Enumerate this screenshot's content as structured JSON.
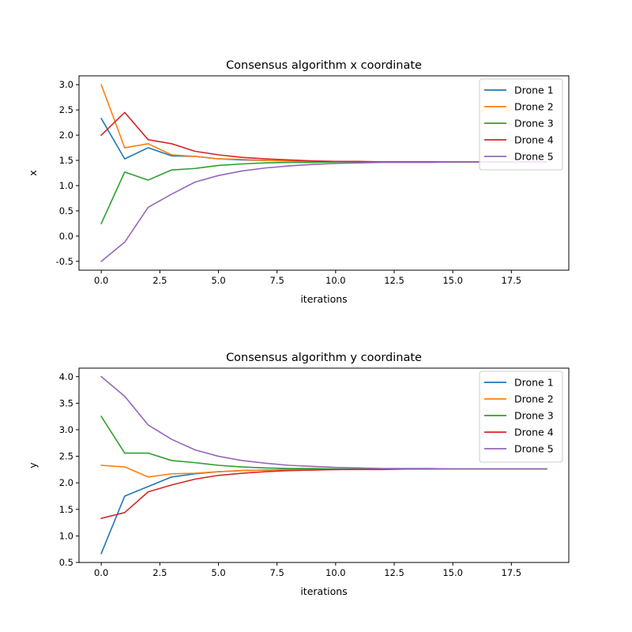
{
  "chart_data": [
    {
      "type": "line",
      "title": "Consensus algorithm x coordinate",
      "xlabel": "iterations",
      "ylabel": "x",
      "xlim": [
        -0.95,
        19.95
      ],
      "ylim": [
        -0.675,
        3.175
      ],
      "xticks": [
        "0.0",
        "2.5",
        "5.0",
        "7.5",
        "10.0",
        "12.5",
        "15.0",
        "17.5"
      ],
      "yticks": [
        "-0.5",
        "0.0",
        "0.5",
        "1.0",
        "1.5",
        "2.0",
        "2.5",
        "3.0"
      ],
      "grid": false,
      "legend_position": "top-right",
      "x": [
        0,
        1,
        2,
        3,
        4,
        5,
        6,
        7,
        8,
        9,
        10,
        11,
        12,
        13,
        14,
        15,
        16,
        17,
        18,
        19
      ],
      "series": [
        {
          "name": "Drone 1",
          "color": "#1f77b4",
          "values": [
            2.33,
            1.53,
            1.75,
            1.59,
            1.58,
            1.53,
            1.51,
            1.5,
            1.49,
            1.48,
            1.48,
            1.47,
            1.47,
            1.47,
            1.47,
            1.47,
            1.47,
            1.47,
            1.47,
            1.47
          ]
        },
        {
          "name": "Drone 2",
          "color": "#ff7f0e",
          "values": [
            3.0,
            1.75,
            1.83,
            1.61,
            1.58,
            1.53,
            1.52,
            1.5,
            1.49,
            1.48,
            1.48,
            1.47,
            1.47,
            1.47,
            1.47,
            1.47,
            1.47,
            1.47,
            1.47,
            1.47
          ]
        },
        {
          "name": "Drone 3",
          "color": "#2ca02c",
          "values": [
            0.25,
            1.27,
            1.11,
            1.31,
            1.34,
            1.4,
            1.43,
            1.45,
            1.46,
            1.46,
            1.47,
            1.47,
            1.47,
            1.47,
            1.47,
            1.47,
            1.47,
            1.47,
            1.47,
            1.47
          ]
        },
        {
          "name": "Drone 4",
          "color": "#d62728",
          "values": [
            2.0,
            2.45,
            1.91,
            1.83,
            1.68,
            1.61,
            1.56,
            1.53,
            1.51,
            1.49,
            1.48,
            1.48,
            1.47,
            1.47,
            1.47,
            1.47,
            1.47,
            1.47,
            1.47,
            1.47
          ]
        },
        {
          "name": "Drone 5",
          "color": "#9467bd",
          "values": [
            -0.5,
            -0.12,
            0.57,
            0.83,
            1.07,
            1.2,
            1.29,
            1.35,
            1.39,
            1.42,
            1.44,
            1.45,
            1.46,
            1.46,
            1.46,
            1.47,
            1.47,
            1.47,
            1.47,
            1.47
          ]
        }
      ]
    },
    {
      "type": "line",
      "title": "Consensus algorithm y coordinate",
      "xlabel": "iterations",
      "ylabel": "y",
      "xlim": [
        -0.95,
        19.95
      ],
      "ylim": [
        0.5,
        4.16
      ],
      "xticks": [
        "0.0",
        "2.5",
        "5.0",
        "7.5",
        "10.0",
        "12.5",
        "15.0",
        "17.5"
      ],
      "yticks": [
        "0.5",
        "1.0",
        "1.5",
        "2.0",
        "2.5",
        "3.0",
        "3.5",
        "4.0"
      ],
      "grid": false,
      "legend_position": "top-right",
      "x": [
        0,
        1,
        2,
        3,
        4,
        5,
        6,
        7,
        8,
        9,
        10,
        11,
        12,
        13,
        14,
        15,
        16,
        17,
        18,
        19
      ],
      "series": [
        {
          "name": "Drone 1",
          "color": "#1f77b4",
          "values": [
            0.67,
            1.75,
            1.93,
            2.11,
            2.17,
            2.21,
            2.23,
            2.24,
            2.25,
            2.25,
            2.25,
            2.26,
            2.26,
            2.26,
            2.26,
            2.26,
            2.26,
            2.26,
            2.26,
            2.26
          ]
        },
        {
          "name": "Drone 2",
          "color": "#ff7f0e",
          "values": [
            2.33,
            2.3,
            2.11,
            2.17,
            2.18,
            2.21,
            2.23,
            2.24,
            2.25,
            2.25,
            2.25,
            2.26,
            2.26,
            2.26,
            2.26,
            2.26,
            2.26,
            2.26,
            2.26,
            2.26
          ]
        },
        {
          "name": "Drone 3",
          "color": "#2ca02c",
          "values": [
            3.25,
            2.56,
            2.56,
            2.42,
            2.38,
            2.33,
            2.3,
            2.28,
            2.27,
            2.27,
            2.26,
            2.26,
            2.26,
            2.26,
            2.26,
            2.26,
            2.26,
            2.26,
            2.26,
            2.26
          ]
        },
        {
          "name": "Drone 4",
          "color": "#d62728",
          "values": [
            1.33,
            1.44,
            1.83,
            1.96,
            2.07,
            2.14,
            2.18,
            2.21,
            2.23,
            2.24,
            2.25,
            2.25,
            2.25,
            2.26,
            2.26,
            2.26,
            2.26,
            2.26,
            2.26,
            2.26
          ]
        },
        {
          "name": "Drone 5",
          "color": "#9467bd",
          "values": [
            4.0,
            3.63,
            3.09,
            2.82,
            2.62,
            2.5,
            2.42,
            2.37,
            2.33,
            2.31,
            2.29,
            2.28,
            2.27,
            2.27,
            2.27,
            2.26,
            2.26,
            2.26,
            2.26,
            2.26
          ]
        }
      ]
    }
  ]
}
